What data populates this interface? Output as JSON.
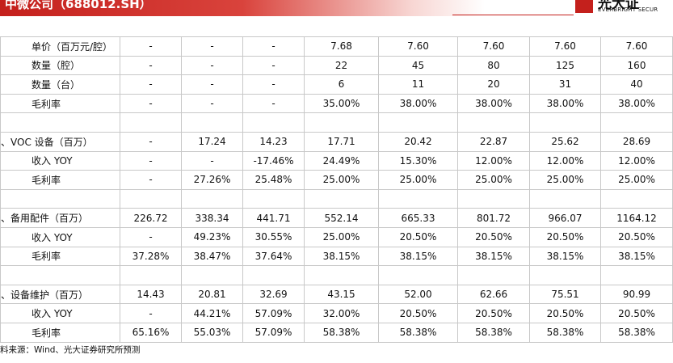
{
  "header": {
    "title": "中微公司（688012.SH）",
    "logo_cn": "光大证",
    "logo_en": "EVERBRIGHT SECUR"
  },
  "table": {
    "rows": [
      [
        "单价（百万元/腔）",
        "-",
        "-",
        "-",
        "7.68",
        "7.60",
        "7.60",
        "7.60",
        "7.60"
      ],
      [
        "数量（腔）",
        "-",
        "-",
        "-",
        "22",
        "45",
        "80",
        "125",
        "160"
      ],
      [
        "数量（台）",
        "-",
        "-",
        "-",
        "6",
        "11",
        "20",
        "31",
        "40"
      ],
      [
        "毛利率",
        "-",
        "-",
        "-",
        "35.00%",
        "38.00%",
        "38.00%",
        "38.00%",
        "38.00%"
      ],
      [],
      [
        "、VOC 设备（百万）",
        "-",
        "17.24",
        "14.23",
        "17.71",
        "20.42",
        "22.87",
        "25.62",
        "28.69"
      ],
      [
        "收入 YOY",
        "-",
        "-",
        "-17.46%",
        "24.49%",
        "15.30%",
        "12.00%",
        "12.00%",
        "12.00%"
      ],
      [
        "毛利率",
        "-",
        "27.26%",
        "25.48%",
        "25.00%",
        "25.00%",
        "25.00%",
        "25.00%",
        "25.00%"
      ],
      [],
      [
        "、备用配件（百万）",
        "226.72",
        "338.34",
        "441.71",
        "552.14",
        "665.33",
        "801.72",
        "966.07",
        "1164.12"
      ],
      [
        "收入 YOY",
        "-",
        "49.23%",
        "30.55%",
        "25.00%",
        "20.50%",
        "20.50%",
        "20.50%",
        "20.50%"
      ],
      [
        "毛利率",
        "37.28%",
        "38.47%",
        "37.64%",
        "38.15%",
        "38.15%",
        "38.15%",
        "38.15%",
        "38.15%"
      ],
      [],
      [
        "、设备维护（百万）",
        "14.43",
        "20.81",
        "32.69",
        "43.15",
        "52.00",
        "62.66",
        "75.51",
        "90.99"
      ],
      [
        "收入 YOY",
        "-",
        "44.21%",
        "57.09%",
        "32.00%",
        "20.50%",
        "20.50%",
        "20.50%",
        "20.50%"
      ],
      [
        "毛利率",
        "65.16%",
        "55.03%",
        "57.09%",
        "58.38%",
        "58.38%",
        "58.38%",
        "58.38%",
        "58.38%"
      ]
    ]
  },
  "footer": {
    "source": "料来源：Wind、光大证券研究所预测"
  }
}
